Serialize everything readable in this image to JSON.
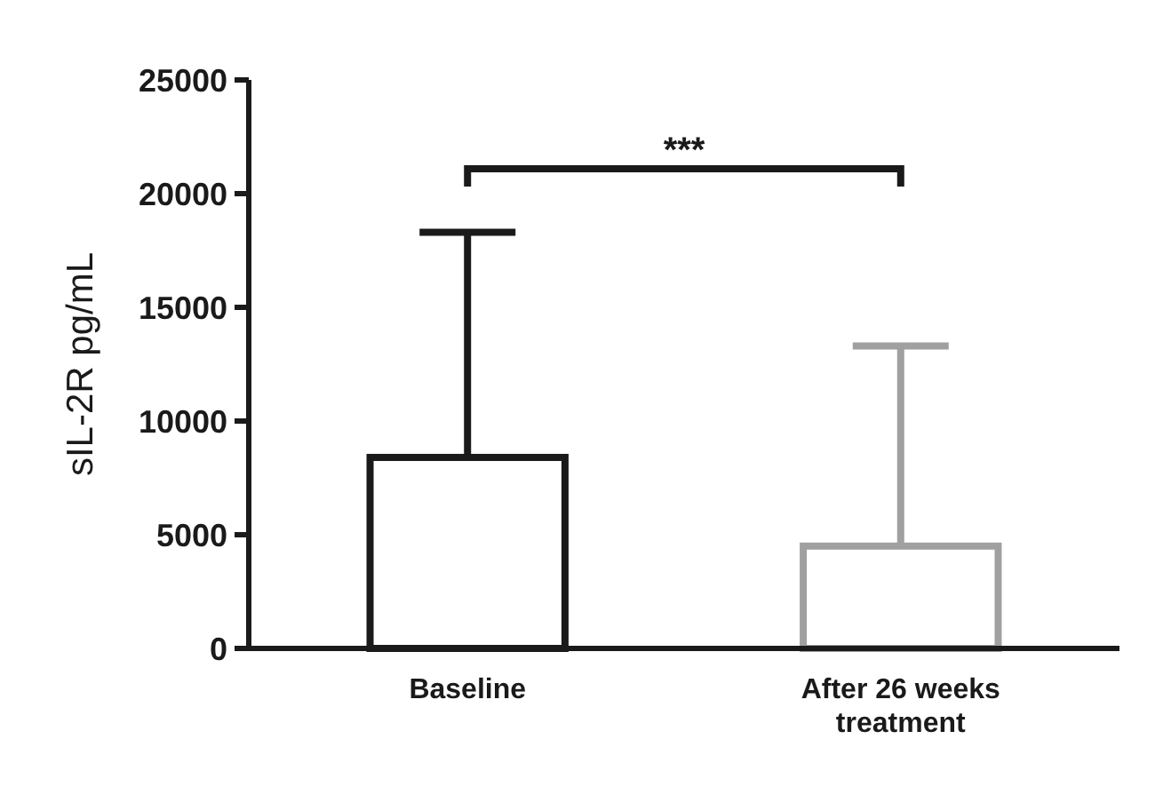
{
  "chart_data": {
    "type": "bar",
    "ylabel": "sIL-2R pg/mL",
    "categories": [
      "Baseline",
      "After 26 weeks treatment"
    ],
    "values": [
      8400,
      4500
    ],
    "colors": [
      "#1a1a1a",
      "#a0a0a0"
    ],
    "errors": [
      [
        8400,
        18300
      ],
      [
        4500,
        13300
      ]
    ],
    "ylim": [
      0,
      25000
    ],
    "yticks": [
      0,
      5000,
      10000,
      15000,
      20000,
      25000
    ],
    "grid": false,
    "annotations": [
      "***"
    ]
  }
}
